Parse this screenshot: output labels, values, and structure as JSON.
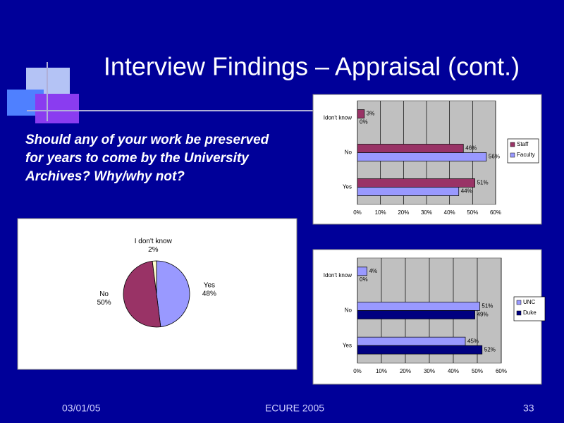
{
  "slide": {
    "title": "Interview Findings – Appraisal (cont.)",
    "question": [
      "Should any of your work be preserved",
      "for years to come by the University",
      "Archives?  Why/why not?"
    ],
    "footer": {
      "date": "03/01/05",
      "event": "ECURE 2005",
      "page": "33"
    }
  },
  "chart_data": [
    {
      "type": "barh",
      "categories": [
        "Idon't know",
        "No",
        "Yes"
      ],
      "series": [
        {
          "name": "Staff",
          "color": "#993366",
          "values": [
            3,
            46,
            51
          ],
          "value_labels": [
            "3%",
            "46%",
            "51%"
          ]
        },
        {
          "name": "Faculty",
          "color": "#9999ff",
          "values": [
            0,
            56,
            44
          ],
          "value_labels": [
            "0%",
            "56%",
            "44%"
          ]
        }
      ],
      "xlim": [
        0,
        60
      ],
      "xticks": [
        {
          "value": 0,
          "label": "0%"
        },
        {
          "value": 10,
          "label": "10%"
        },
        {
          "value": 20,
          "label": "20%"
        },
        {
          "value": 30,
          "label": "30%"
        },
        {
          "value": 40,
          "label": "40%"
        },
        {
          "value": 50,
          "label": "50%"
        },
        {
          "value": 60,
          "label": "60%"
        }
      ],
      "grid": true,
      "legend": "right"
    },
    {
      "type": "pie",
      "categories": [
        "Yes",
        "No",
        "I don't know"
      ],
      "values": [
        48,
        50,
        2
      ],
      "value_labels": [
        "48%",
        "50%",
        "2%"
      ],
      "colors": [
        "#9999ff",
        "#993366",
        "#ffffcc"
      ]
    },
    {
      "type": "barh",
      "categories": [
        "Idon't know",
        "No",
        "Yes"
      ],
      "series": [
        {
          "name": "UNC",
          "color": "#9999ff",
          "values": [
            4,
            51,
            45
          ],
          "value_labels": [
            "4%",
            "51%",
            "45%"
          ]
        },
        {
          "name": "Duke",
          "color": "#000080",
          "values": [
            0,
            49,
            52
          ],
          "value_labels": [
            "0%",
            "49%",
            "52%"
          ]
        }
      ],
      "xlim": [
        0,
        60
      ],
      "xticks": [
        {
          "value": 0,
          "label": "0%"
        },
        {
          "value": 10,
          "label": "10%"
        },
        {
          "value": 20,
          "label": "20%"
        },
        {
          "value": 30,
          "label": "30%"
        },
        {
          "value": 40,
          "label": "40%"
        },
        {
          "value": 50,
          "label": "50%"
        },
        {
          "value": 60,
          "label": "60%"
        }
      ],
      "grid": true,
      "legend": "right"
    }
  ]
}
